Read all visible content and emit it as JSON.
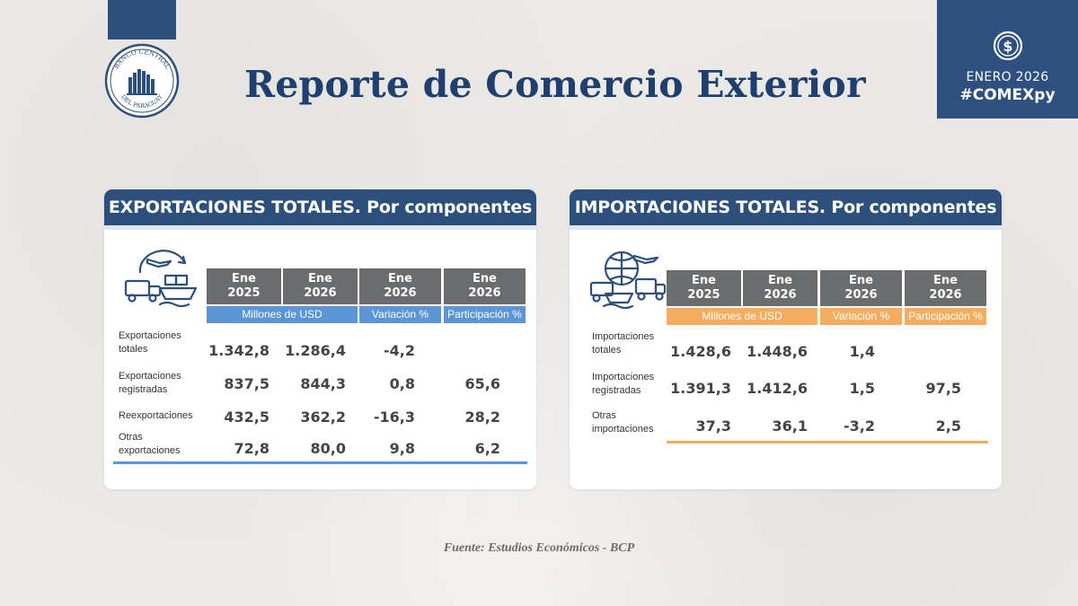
{
  "header": {
    "title": "Reporte de Comercio Exterior",
    "logo_text_top": "BANCO CENTRAL",
    "logo_text_bottom": "DEL PARAGUAY",
    "badge_month": "ENERO 2026",
    "badge_hashtag": "#COMEXpy",
    "badge_icon": "dollar-coin-icon",
    "colors": {
      "navy": "#2d4f7c",
      "title": "#1f3f6e"
    }
  },
  "exports": {
    "title": "EXPORTACIONES TOTALES. Por componentes",
    "icon": "trade-logistics-icon",
    "accent": "#5b95d5",
    "columns": [
      {
        "line1": "Ene",
        "line2": "2025"
      },
      {
        "line1": "Ene",
        "line2": "2026"
      },
      {
        "line1": "Ene",
        "line2": "2026"
      },
      {
        "line1": "Ene",
        "line2": "2026"
      }
    ],
    "subheaders": {
      "millones": "Millones de USD",
      "variacion": "Variación %",
      "participacion": "Participación %"
    },
    "rows": [
      {
        "line1": "Exportaciones",
        "line2": "totales",
        "values": [
          "1.342,8",
          "1.286,4",
          "-4,2",
          ""
        ]
      },
      {
        "line1": "Exportaciones",
        "line2": "registradas",
        "values": [
          "837,5",
          "844,3",
          "0,8",
          "65,6"
        ]
      },
      {
        "line1": "Reexportaciones",
        "line2": "",
        "values": [
          "432,5",
          "362,2",
          "-16,3",
          "28,2"
        ]
      },
      {
        "line1": "Otras",
        "line2": "exportaciones",
        "values": [
          "72,8",
          "80,0",
          "9,8",
          "6,2"
        ]
      }
    ]
  },
  "imports": {
    "title": "IMPORTACIONES TOTALES. Por componentes",
    "icon": "trade-logistics-icon",
    "accent": "#f6ac5f",
    "columns": [
      {
        "line1": "Ene",
        "line2": "2025"
      },
      {
        "line1": "Ene",
        "line2": "2026"
      },
      {
        "line1": "Ene",
        "line2": "2026"
      },
      {
        "line1": "Ene",
        "line2": "2026"
      }
    ],
    "subheaders": {
      "millones": "Millones de USD",
      "variacion": "Variación %",
      "participacion": "Participación %"
    },
    "rows": [
      {
        "line1": "Importaciones",
        "line2": "totales",
        "values": [
          "1.428,6",
          "1.448,6",
          "1,4",
          ""
        ]
      },
      {
        "line1": "Importaciones",
        "line2": "registradas",
        "values": [
          "1.391,3",
          "1.412,6",
          "1,5",
          "97,5"
        ]
      },
      {
        "line1": "Otras",
        "line2": "importaciones",
        "values": [
          "37,3",
          "36,1",
          "-3,2",
          "2,5"
        ]
      }
    ]
  },
  "footer": {
    "source": "Fuente: Estudios Económicos - BCP"
  }
}
